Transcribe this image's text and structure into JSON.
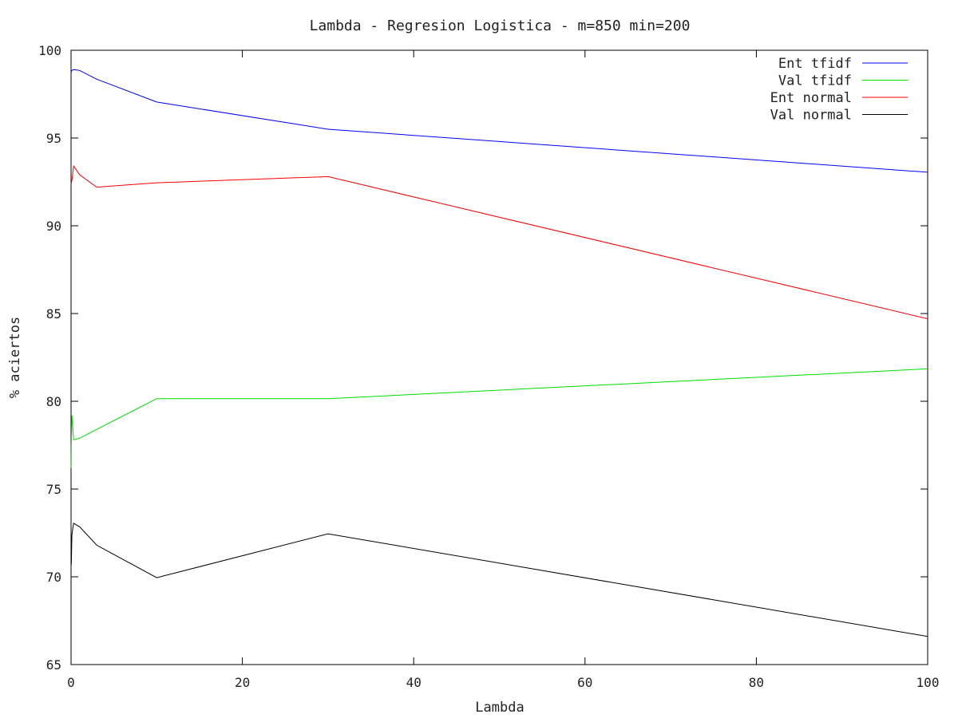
{
  "chart_data": {
    "type": "line",
    "title": "Lambda - Regresion Logistica - m=850 min=200",
    "xlabel": "Lambda",
    "ylabel": "% aciertos",
    "xlim": [
      0,
      100
    ],
    "ylim": [
      65,
      100
    ],
    "xticks": [
      0,
      20,
      40,
      60,
      80,
      100
    ],
    "yticks": [
      65,
      70,
      75,
      80,
      85,
      90,
      95,
      100
    ],
    "legend_position": "top-right",
    "series": [
      {
        "name": "Ent tfidf",
        "color": "#0000ff",
        "points": [
          [
            0.01,
            98.7
          ],
          [
            0.03,
            98.8
          ],
          [
            0.1,
            98.85
          ],
          [
            0.3,
            98.9
          ],
          [
            1,
            98.85
          ],
          [
            3,
            98.35
          ],
          [
            10,
            97.05
          ],
          [
            30,
            95.5
          ],
          [
            100,
            93.05
          ]
        ]
      },
      {
        "name": "Val tfidf",
        "color": "#00dd00",
        "points": [
          [
            0.01,
            76.2
          ],
          [
            0.03,
            77.5
          ],
          [
            0.1,
            79.2
          ],
          [
            0.3,
            77.8
          ],
          [
            1,
            77.9
          ],
          [
            3,
            78.4
          ],
          [
            10,
            80.15
          ],
          [
            30,
            80.15
          ],
          [
            100,
            81.85
          ]
        ]
      },
      {
        "name": "Ent normal",
        "color": "#ff0000",
        "points": [
          [
            0.01,
            92.5
          ],
          [
            0.03,
            92.4
          ],
          [
            0.1,
            92.6
          ],
          [
            0.3,
            93.4
          ],
          [
            1,
            92.9
          ],
          [
            3,
            92.2
          ],
          [
            10,
            92.45
          ],
          [
            30,
            92.8
          ],
          [
            100,
            84.7
          ]
        ]
      },
      {
        "name": "Val normal",
        "color": "#000000",
        "points": [
          [
            0.01,
            70.8
          ],
          [
            0.03,
            70.7
          ],
          [
            0.1,
            72.4
          ],
          [
            0.3,
            73.05
          ],
          [
            1,
            72.85
          ],
          [
            3,
            71.8
          ],
          [
            10,
            69.95
          ],
          [
            30,
            72.45
          ],
          [
            100,
            66.6
          ]
        ]
      }
    ]
  }
}
